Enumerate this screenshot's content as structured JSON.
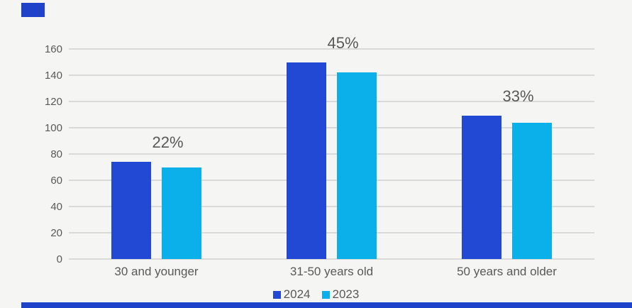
{
  "colors": {
    "background": "#f5f5f3",
    "gridline": "#d9d9d9",
    "text": "#595959",
    "accent": "#1e43c8",
    "series_2024": "#2249d4",
    "series_2023": "#0bafea"
  },
  "chart_data": {
    "type": "bar",
    "title": "",
    "categories": [
      "30 and younger",
      "31-50 years old",
      "50 years and older"
    ],
    "series": [
      {
        "name": "2024",
        "color": "#2249d4",
        "values": [
          74,
          150,
          109
        ]
      },
      {
        "name": "2023",
        "color": "#0bafea",
        "values": [
          70,
          142,
          104
        ]
      }
    ],
    "group_labels": [
      "22%",
      "45%",
      "33%"
    ],
    "ylim": [
      0,
      160
    ],
    "yticks": [
      0,
      20,
      40,
      60,
      80,
      100,
      120,
      140,
      160
    ],
    "grid": true,
    "legend_position": "bottom"
  }
}
